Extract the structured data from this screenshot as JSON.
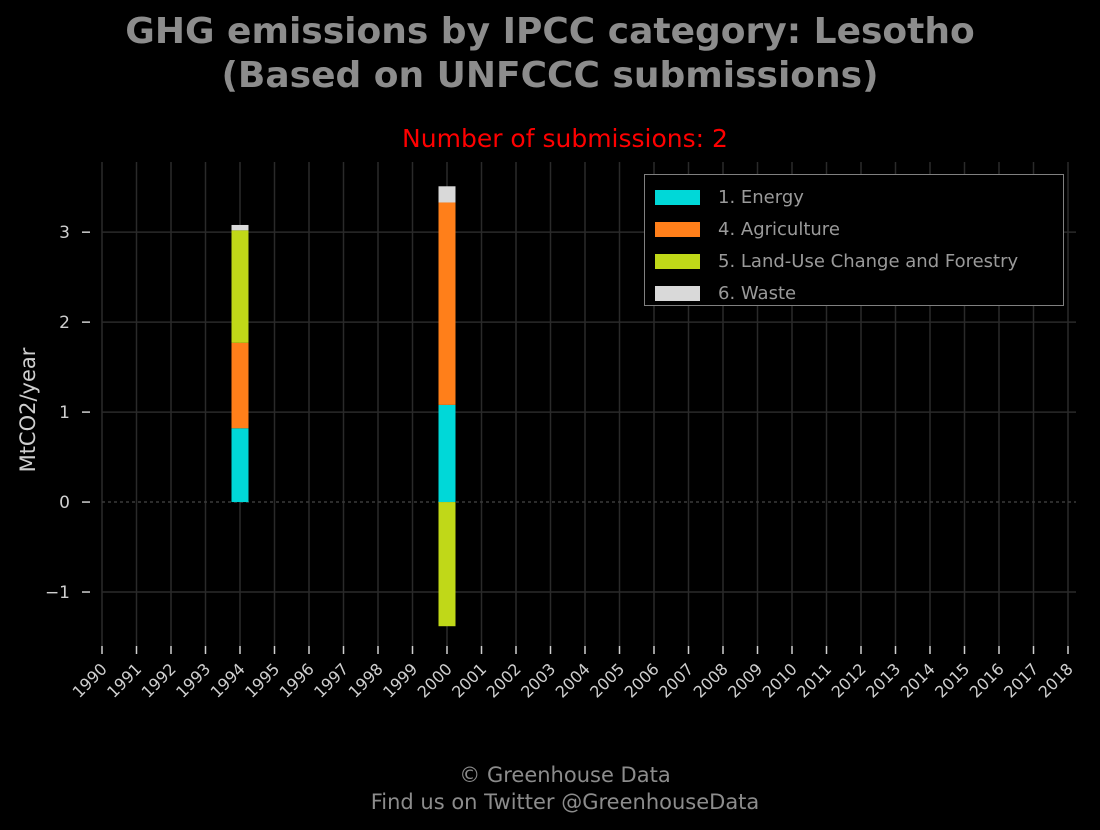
{
  "chart_data": {
    "type": "bar",
    "stacked": true,
    "title_lines": [
      "GHG emissions by IPCC category: Lesotho",
      "(Based on UNFCCC submissions)"
    ],
    "subtitle": "Number of submissions: 2",
    "xlabel": "",
    "ylabel": "MtCO2/year",
    "ylim": [
      -1.6,
      3.78
    ],
    "yticks": [
      -1,
      0,
      1,
      2,
      3
    ],
    "ytick_labels": [
      "−1",
      "0",
      "1",
      "2",
      "3"
    ],
    "categories": [
      "1990",
      "1991",
      "1992",
      "1993",
      "1994",
      "1995",
      "1996",
      "1997",
      "1998",
      "1999",
      "2000",
      "2001",
      "2002",
      "2003",
      "2004",
      "2005",
      "2006",
      "2007",
      "2008",
      "2009",
      "2010",
      "2011",
      "2012",
      "2013",
      "2014",
      "2015",
      "2016",
      "2017",
      "2018"
    ],
    "grid": true,
    "legend_position": "top-right",
    "series": [
      {
        "name": "1. Energy",
        "color": "#00d8d8",
        "values": {
          "1994": 0.82,
          "2000": 1.08
        }
      },
      {
        "name": "4. Agriculture",
        "color": "#ff7f1a",
        "values": {
          "1994": 0.95,
          "2000": 2.25
        }
      },
      {
        "name": "5. Land-Use Change and Forestry",
        "color": "#c0d818",
        "values": {
          "1994": 1.25,
          "2000": -1.38
        }
      },
      {
        "name": "6. Waste",
        "color": "#d9d9d9",
        "values": {
          "1994": 0.06,
          "2000": 0.18
        }
      }
    ]
  },
  "footer": {
    "copyright": "© Greenhouse Data",
    "twitter": "Find us on Twitter @GreenhouseData"
  },
  "colors": {
    "background": "#000000",
    "title": "#8c8c8c",
    "subtitle": "#ff0000",
    "grid": "#2a2a2a",
    "axis_text": "#cfcfcf"
  }
}
